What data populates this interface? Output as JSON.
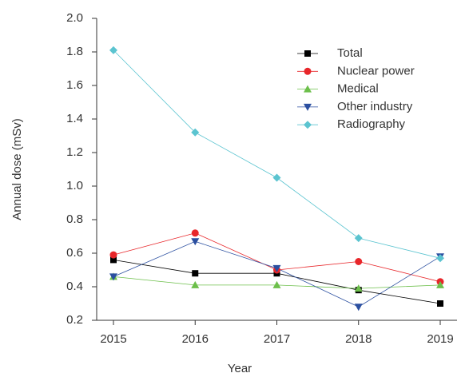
{
  "chart_data": {
    "type": "line",
    "xlabel": "Year",
    "ylabel": "Annual dose (mSv)",
    "categories": [
      "2015",
      "2016",
      "2017",
      "2018",
      "2019"
    ],
    "series": [
      {
        "name": "Total",
        "color": "#000000",
        "marker": "square",
        "values": [
          0.56,
          0.48,
          0.48,
          0.38,
          0.3
        ]
      },
      {
        "name": "Nuclear power",
        "color": "#e8262a",
        "marker": "circle",
        "values": [
          0.59,
          0.72,
          0.5,
          0.55,
          0.43
        ]
      },
      {
        "name": "Medical",
        "color": "#6cbf4a",
        "marker": "triangle-up",
        "values": [
          0.46,
          0.41,
          0.41,
          0.39,
          0.41
        ]
      },
      {
        "name": "Other industry",
        "color": "#2b4fa0",
        "marker": "triangle-down",
        "values": [
          0.46,
          0.67,
          0.51,
          0.28,
          0.58
        ]
      },
      {
        "name": "Radiography",
        "color": "#5bc4d0",
        "marker": "diamond",
        "values": [
          1.81,
          1.32,
          1.05,
          0.69,
          0.57
        ]
      }
    ],
    "ylim": [
      0.2,
      2.0
    ],
    "yticks": [
      0.2,
      0.4,
      0.6,
      0.8,
      {
        "value": 1,
        "label": "1.0"
      },
      1.2,
      1.4,
      1.6,
      1.8,
      {
        "value": 2,
        "label": "2.0"
      }
    ],
    "legend": "upper right",
    "grid": false
  }
}
